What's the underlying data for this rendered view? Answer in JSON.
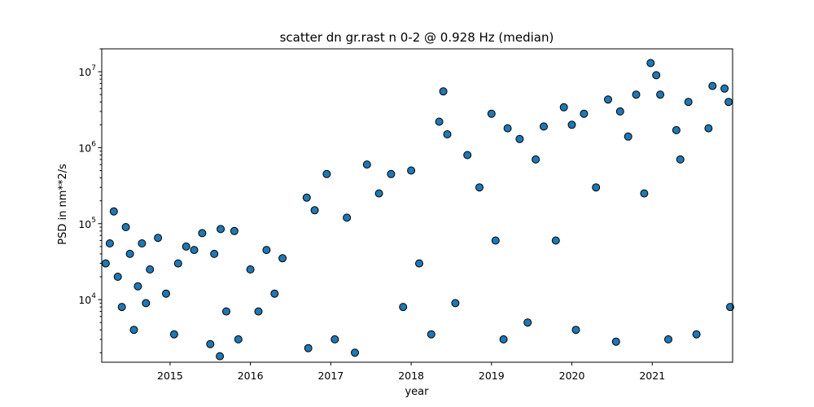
{
  "chart_data": {
    "type": "scatter",
    "title": "scatter dn gr.rast n 0-2 @ 0.928 Hz (median)",
    "xlabel": "year",
    "ylabel": "PSD in nm**2/s",
    "xlim": [
      2014.15,
      2022.0
    ],
    "ylim": [
      1500,
      20000000
    ],
    "yscale": "log",
    "grid": false,
    "x_ticks": [
      "2015",
      "2016",
      "2017",
      "2018",
      "2019",
      "2020",
      "2021"
    ],
    "y_ticks": [
      {
        "base": "10",
        "exp": "4",
        "value": 10000
      },
      {
        "base": "10",
        "exp": "5",
        "value": 100000
      },
      {
        "base": "10",
        "exp": "6",
        "value": 1000000
      },
      {
        "base": "10",
        "exp": "7",
        "value": 10000000
      }
    ],
    "marker_color": "#1f77b4",
    "marker_edge_color": "#000000",
    "series": [
      {
        "points": [
          [
            2014.2,
            30000
          ],
          [
            2014.25,
            55000
          ],
          [
            2014.3,
            145000
          ],
          [
            2014.35,
            20000
          ],
          [
            2014.4,
            8000
          ],
          [
            2014.45,
            90000
          ],
          [
            2014.5,
            40000
          ],
          [
            2014.55,
            4000
          ],
          [
            2014.6,
            15000
          ],
          [
            2014.65,
            55000
          ],
          [
            2014.7,
            9000
          ],
          [
            2014.75,
            25000
          ],
          [
            2014.85,
            65000
          ],
          [
            2014.95,
            12000
          ],
          [
            2015.05,
            3500
          ],
          [
            2015.1,
            30000
          ],
          [
            2015.2,
            50000
          ],
          [
            2015.3,
            45000
          ],
          [
            2015.4,
            75000
          ],
          [
            2015.5,
            2600
          ],
          [
            2015.55,
            40000
          ],
          [
            2015.62,
            1800
          ],
          [
            2015.63,
            85000
          ],
          [
            2015.7,
            7000
          ],
          [
            2015.8,
            80000
          ],
          [
            2015.85,
            3000
          ],
          [
            2016.0,
            25000
          ],
          [
            2016.1,
            7000
          ],
          [
            2016.2,
            45000
          ],
          [
            2016.3,
            12000
          ],
          [
            2016.4,
            35000
          ],
          [
            2016.7,
            220000
          ],
          [
            2016.72,
            2300
          ],
          [
            2016.8,
            150000
          ],
          [
            2016.95,
            450000
          ],
          [
            2017.05,
            3000
          ],
          [
            2017.2,
            120000
          ],
          [
            2017.3,
            2000
          ],
          [
            2017.45,
            600000
          ],
          [
            2017.6,
            250000
          ],
          [
            2017.75,
            450000
          ],
          [
            2017.9,
            8000
          ],
          [
            2018.0,
            500000
          ],
          [
            2018.1,
            30000
          ],
          [
            2018.25,
            3500
          ],
          [
            2018.35,
            2200000
          ],
          [
            2018.4,
            5500000
          ],
          [
            2018.45,
            1500000
          ],
          [
            2018.55,
            9000
          ],
          [
            2018.7,
            800000
          ],
          [
            2018.85,
            300000
          ],
          [
            2019.0,
            2800000
          ],
          [
            2019.05,
            60000
          ],
          [
            2019.15,
            3000
          ],
          [
            2019.2,
            1800000
          ],
          [
            2019.35,
            1300000
          ],
          [
            2019.45,
            5000
          ],
          [
            2019.55,
            700000
          ],
          [
            2019.65,
            1900000
          ],
          [
            2019.8,
            60000
          ],
          [
            2019.9,
            3400000
          ],
          [
            2020.0,
            2000000
          ],
          [
            2020.05,
            4000
          ],
          [
            2020.15,
            2800000
          ],
          [
            2020.3,
            300000
          ],
          [
            2020.45,
            4300000
          ],
          [
            2020.55,
            2800
          ],
          [
            2020.6,
            3000000
          ],
          [
            2020.7,
            1400000
          ],
          [
            2020.8,
            5000000
          ],
          [
            2020.9,
            250000
          ],
          [
            2020.98,
            13000000
          ],
          [
            2021.05,
            9000000
          ],
          [
            2021.1,
            5000000
          ],
          [
            2021.2,
            3000
          ],
          [
            2021.3,
            1700000
          ],
          [
            2021.35,
            700000
          ],
          [
            2021.45,
            4000000
          ],
          [
            2021.55,
            3500
          ],
          [
            2021.7,
            1800000
          ],
          [
            2021.75,
            6500000
          ],
          [
            2021.9,
            6000000
          ],
          [
            2021.95,
            4000000
          ],
          [
            2021.97,
            8000
          ]
        ]
      }
    ]
  }
}
